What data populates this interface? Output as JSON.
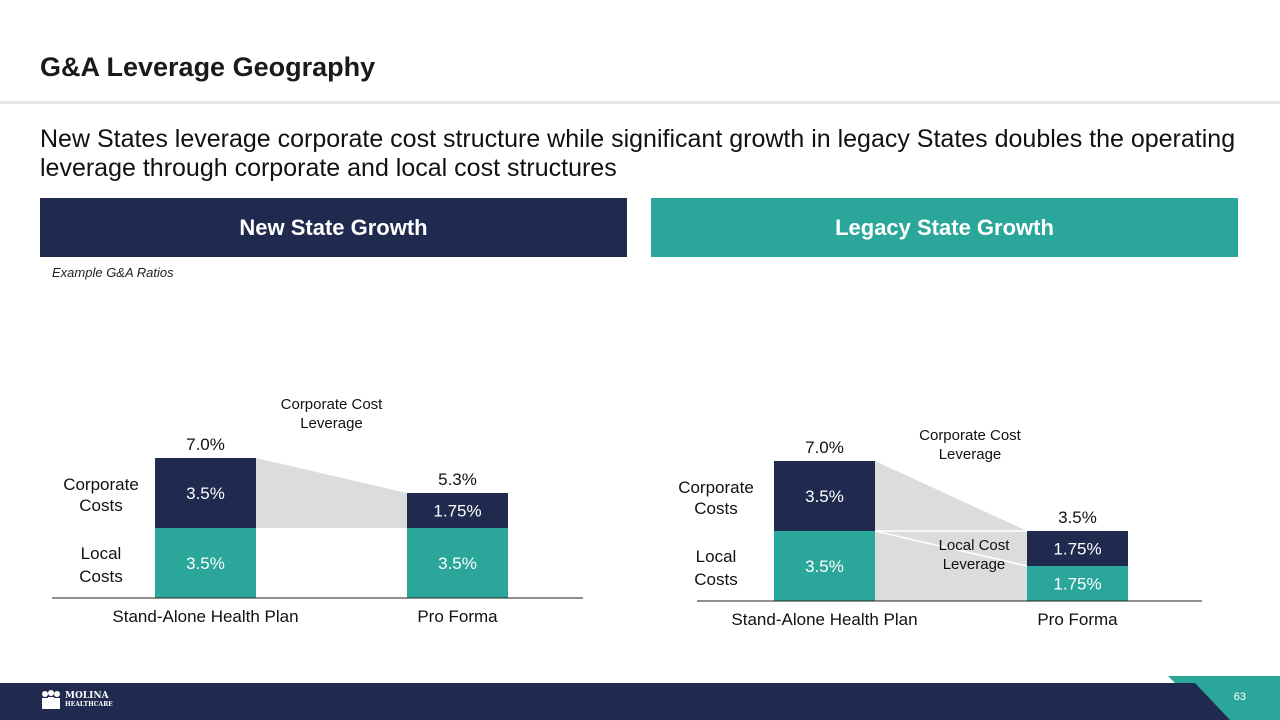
{
  "slide": {
    "title": "G&A Leverage Geography",
    "subtitle": "New States leverage corporate cost structure while significant growth in legacy States doubles the operating leverage through corporate and local cost structures",
    "note": "Example G&A Ratios",
    "page_number": "63",
    "logo_line1": "MOLINA",
    "logo_line2": "HEALTHCARE"
  },
  "colors": {
    "navy": "#1f2a4e",
    "teal": "#2ba69a",
    "grey_band": "#dcdcdc"
  },
  "panels": {
    "left_header": "New State Growth",
    "right_header": "Legacy State Growth"
  },
  "chart_data": [
    {
      "type": "bar",
      "title": "New State Growth",
      "stacked": true,
      "unit": "%",
      "categories": [
        "Stand-Alone Health Plan",
        "Pro Forma"
      ],
      "series": [
        {
          "name": "Local Costs",
          "values": [
            3.5,
            3.5
          ],
          "labels": [
            "3.5%",
            "3.5%"
          ]
        },
        {
          "name": "Corporate Costs",
          "values": [
            3.5,
            1.75
          ],
          "labels": [
            "3.5%",
            "1.75%"
          ]
        }
      ],
      "totals": [
        "7.0%",
        "5.3%"
      ],
      "row_labels": {
        "top": "Corporate Costs",
        "bottom": "Local Costs"
      },
      "annotations": [
        "Corporate Cost Leverage"
      ],
      "ylim": [
        0,
        7
      ]
    },
    {
      "type": "bar",
      "title": "Legacy State Growth",
      "stacked": true,
      "unit": "%",
      "categories": [
        "Stand-Alone Health Plan",
        "Pro Forma"
      ],
      "series": [
        {
          "name": "Local Costs",
          "values": [
            3.5,
            1.75
          ],
          "labels": [
            "3.5%",
            "1.75%"
          ]
        },
        {
          "name": "Corporate Costs",
          "values": [
            3.5,
            1.75
          ],
          "labels": [
            "3.5%",
            "1.75%"
          ]
        }
      ],
      "totals": [
        "7.0%",
        "3.5%"
      ],
      "row_labels": {
        "top": "Corporate Costs",
        "bottom": "Local Costs"
      },
      "annotations": [
        "Corporate Cost Leverage",
        "Local Cost Leverage"
      ],
      "ylim": [
        0,
        7
      ]
    }
  ]
}
